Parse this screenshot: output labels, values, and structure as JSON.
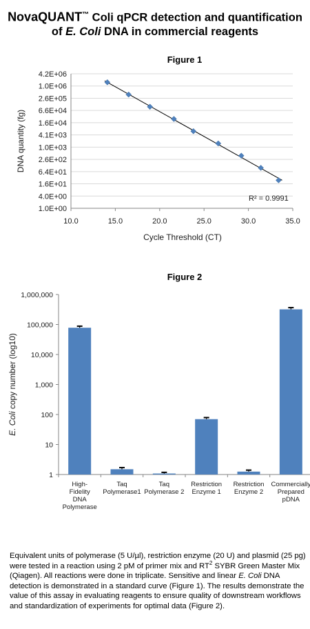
{
  "header": {
    "brand": "NovaQUANT",
    "trademark": "™",
    "title_line1_rest": " Coli qPCR detection and quantification",
    "title_line2_pre": "of ",
    "title_line2_italic": "E. Coli",
    "title_line2_post": " DNA in commercial reagents"
  },
  "chart_data": [
    {
      "type": "scatter",
      "title": "Figure 1",
      "xlabel": "Cycle Threshold (CT)",
      "ylabel": "DNA quantity (fg)",
      "xlim": [
        10.0,
        35.0
      ],
      "x_ticks": [
        "10.0",
        "15.0",
        "20.0",
        "25.0",
        "30.0",
        "35.0"
      ],
      "y_scale": "log",
      "y_ticks": [
        "4.2E+06",
        "1.0E+06",
        "2.6E+05",
        "6.6E+04",
        "1.6E+04",
        "4.1E+03",
        "1.0E+03",
        "2.6E+02",
        "6.4E+01",
        "1.6E+01",
        "4.0E+00",
        "1.0E+00"
      ],
      "x": [
        14.1,
        16.5,
        18.9,
        21.6,
        23.8,
        26.6,
        29.2,
        31.4,
        33.4
      ],
      "y": [
        1600000,
        400000,
        100000,
        25000,
        6250,
        1560,
        390,
        98,
        24
      ],
      "trendline": true,
      "annotation": "R² = 0.9991",
      "grid": "horizontal"
    },
    {
      "type": "bar",
      "title": "Figure 2",
      "ylabel_italic": "E. Coli",
      "ylabel_rest": " copy number (log10)",
      "y_scale": "log",
      "ylim": [
        1,
        1000000
      ],
      "y_ticks": [
        "1,000,000",
        "100,000",
        "10,000",
        "1,000",
        "100",
        "10",
        "1"
      ],
      "categories": [
        [
          "High-",
          "Fidelity",
          "DNA",
          "Polymerase"
        ],
        [
          "Taq",
          "Polymerase1"
        ],
        [
          "Taq",
          "Polymerase 2"
        ],
        [
          "Restriction",
          "Enzyme 1"
        ],
        [
          "Restriction",
          "Enzyme 2"
        ],
        [
          "Commercially",
          "Prepared",
          "pDNA"
        ]
      ],
      "values": [
        78000,
        1.5,
        1.08,
        70,
        1.25,
        320000
      ],
      "errors": [
        10000,
        0.2,
        0.1,
        9,
        0.15,
        45000
      ],
      "error_bars": true,
      "grid": false
    }
  ],
  "caption": {
    "p1": "Equivalent units of polymerase (5 U/µl), restriction enzyme (20 U) and plasmid (25 pg) were tested in a reaction using 2 pM of primer mix and RT",
    "p1_sup": "2",
    "p2": " SYBR Green Master Mix (Qiagen). All reactions were done in triplicate. Sensitive and linear ",
    "p2_italic": "E. Coli",
    "p3": " DNA detection is demonstrated in a standard curve (Figure 1). The results demonstrate the value of this assay in evaluating reagents to ensure quality of downstream workflows and standardization of experiments for optimal data (Figure 2)."
  },
  "colors": {
    "marker": "#4f81bd",
    "bar": "#4f81bd",
    "line": "#000000",
    "grid": "#d9d9d9"
  }
}
